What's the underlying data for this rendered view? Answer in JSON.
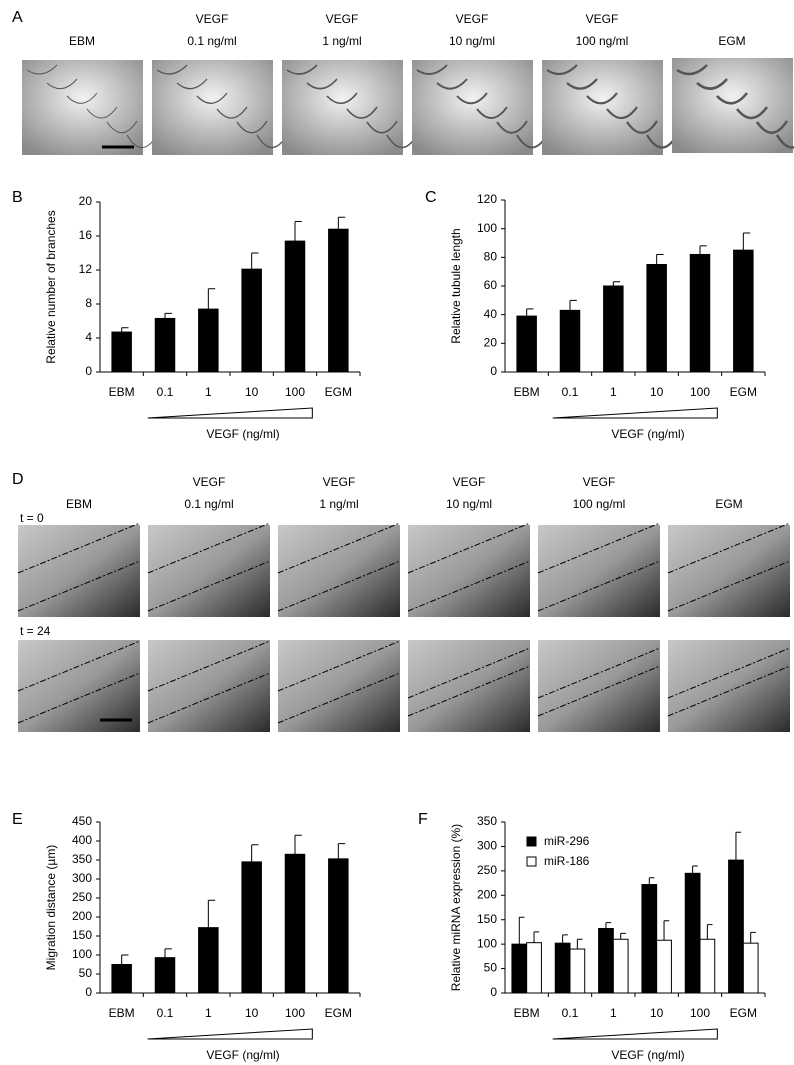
{
  "panel_labels": [
    "A",
    "B",
    "C",
    "D",
    "E",
    "F"
  ],
  "conditions": [
    [
      "EBM"
    ],
    [
      "VEGF",
      "0.1 ng/ml"
    ],
    [
      "VEGF",
      "1 ng/ml"
    ],
    [
      "VEGF",
      "10 ng/ml"
    ],
    [
      "VEGF",
      "100 ng/ml"
    ],
    [
      "EGM"
    ]
  ],
  "time_labels": [
    "t = 0",
    "t = 24"
  ],
  "chart_data": [
    {
      "type": "bar",
      "categories": [
        "EBM",
        "0.1",
        "1",
        "10",
        "100",
        "EGM"
      ],
      "values": [
        4.7,
        6.3,
        7.4,
        12.1,
        15.4,
        16.8
      ],
      "errors": [
        0.5,
        0.6,
        2.4,
        1.9,
        2.3,
        1.4
      ],
      "color": "#000000",
      "y_label": "Relative number of branches",
      "x_label": "VEGF (ng/ml)",
      "ylim": [
        0,
        20
      ],
      "yticks": [
        0,
        4,
        8,
        12,
        16,
        20
      ]
    },
    {
      "type": "bar",
      "categories": [
        "EBM",
        "0.1",
        "1",
        "10",
        "100",
        "EGM"
      ],
      "values": [
        39,
        43,
        60,
        75,
        82,
        85
      ],
      "errors": [
        5,
        7,
        3,
        7,
        6,
        12
      ],
      "color": "#000000",
      "y_label": "Relative tubule length",
      "x_label": "VEGF (ng/ml)",
      "ylim": [
        0,
        120
      ],
      "yticks": [
        0,
        20,
        40,
        60,
        80,
        100,
        120
      ]
    },
    {
      "type": "bar",
      "categories": [
        "EBM",
        "0.1",
        "1",
        "10",
        "100",
        "EGM"
      ],
      "values": [
        75,
        93,
        172,
        345,
        365,
        353
      ],
      "errors": [
        25,
        23,
        72,
        45,
        50,
        40
      ],
      "color": "#000000",
      "y_label": "Migration distance (µm)",
      "x_label": "VEGF (ng/ml)",
      "ylim": [
        0,
        450
      ],
      "yticks": [
        0,
        50,
        100,
        150,
        200,
        250,
        300,
        350,
        400,
        450
      ]
    },
    {
      "type": "bar",
      "categories": [
        "EBM",
        "0.1",
        "1",
        "10",
        "100",
        "EGM"
      ],
      "series": [
        {
          "name": "miR-296",
          "color": "#000000",
          "values": [
            100,
            102,
            132,
            222,
            245,
            272
          ],
          "errors": [
            55,
            17,
            12,
            14,
            15,
            57
          ]
        },
        {
          "name": "miR-186",
          "color": "#ffffff",
          "values": [
            103,
            90,
            110,
            108,
            110,
            102
          ],
          "errors": [
            22,
            20,
            12,
            40,
            30,
            22
          ]
        }
      ],
      "legend": "upper left",
      "y_label": "Relative miRNA expression (%)",
      "x_label": "VEGF (ng/ml)",
      "ylim": [
        0,
        350
      ],
      "yticks": [
        0,
        50,
        100,
        150,
        200,
        250,
        300,
        350
      ]
    }
  ]
}
